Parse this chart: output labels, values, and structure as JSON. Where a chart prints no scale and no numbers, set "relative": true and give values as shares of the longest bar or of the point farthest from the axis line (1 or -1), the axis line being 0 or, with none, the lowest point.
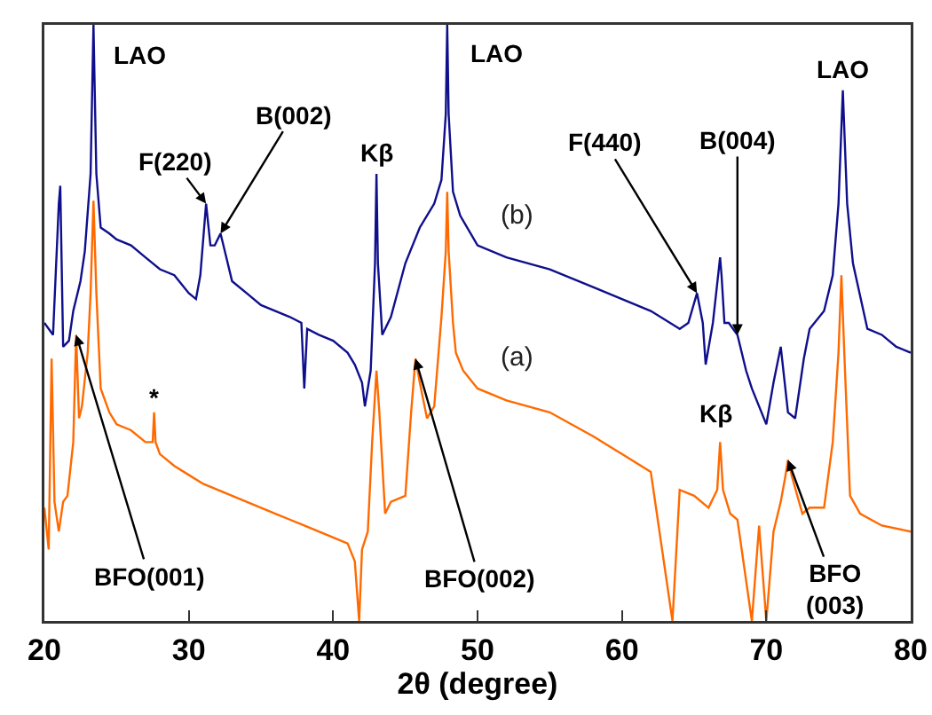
{
  "chart_data": {
    "type": "line",
    "relative": true,
    "xlabel": "2θ (degree)",
    "xlim": [
      20,
      80
    ],
    "xticks": [
      20,
      30,
      40,
      50,
      60,
      70,
      80
    ],
    "grid": false,
    "legend": false,
    "marker": "none",
    "line_style": "solid",
    "series": [
      {
        "name": "(b)",
        "color": "#0f0f8c",
        "x": [
          20.0,
          20.6,
          21.0,
          21.1,
          21.3,
          21.7,
          22.0,
          22.5,
          22.8,
          23.2,
          23.4,
          23.6,
          23.9,
          24.5,
          25,
          26,
          27,
          28,
          29,
          30,
          30.5,
          30.8,
          31.2,
          31.5,
          31.8,
          32.2,
          32.6,
          33,
          34,
          35,
          36,
          37,
          37.8,
          38,
          38.2,
          39,
          40,
          41,
          41.5,
          42.0,
          42.2,
          42.6,
          42.9,
          43.0,
          43.1,
          43.4,
          44,
          45,
          46,
          47,
          47.5,
          47.8,
          47.9,
          48.0,
          48.3,
          48.8,
          50,
          52,
          55,
          58,
          60,
          62,
          64,
          64.6,
          65.2,
          65.6,
          65.8,
          66.3,
          66.8,
          66.9,
          67.1,
          67.4,
          68,
          68.6,
          69,
          69.5,
          70,
          70.5,
          71,
          71.5,
          72,
          72.6,
          73,
          74,
          74.6,
          75.0,
          75.3,
          75.6,
          76,
          77,
          78,
          79,
          80
        ],
        "values": [
          0.5,
          0.48,
          0.7,
          0.73,
          0.46,
          0.47,
          0.52,
          0.57,
          0.62,
          0.75,
          1.0,
          0.75,
          0.66,
          0.65,
          0.64,
          0.63,
          0.61,
          0.59,
          0.58,
          0.55,
          0.54,
          0.58,
          0.7,
          0.63,
          0.63,
          0.65,
          0.61,
          0.57,
          0.55,
          0.53,
          0.52,
          0.51,
          0.5,
          0.39,
          0.49,
          0.48,
          0.47,
          0.45,
          0.43,
          0.4,
          0.36,
          0.42,
          0.6,
          0.75,
          0.6,
          0.48,
          0.51,
          0.6,
          0.66,
          0.7,
          0.74,
          0.85,
          1.0,
          0.85,
          0.72,
          0.68,
          0.63,
          0.61,
          0.59,
          0.56,
          0.54,
          0.52,
          0.49,
          0.5,
          0.55,
          0.5,
          0.43,
          0.5,
          0.61,
          0.58,
          0.5,
          0.5,
          0.48,
          0.42,
          0.39,
          0.36,
          0.33,
          0.4,
          0.46,
          0.35,
          0.34,
          0.44,
          0.49,
          0.52,
          0.58,
          0.7,
          0.89,
          0.7,
          0.6,
          0.49,
          0.48,
          0.46,
          0.45
        ]
      },
      {
        "name": "(a)",
        "color": "#ff6a00",
        "x": [
          20.0,
          20.3,
          20.5,
          20.7,
          21.0,
          21.3,
          21.6,
          22.0,
          22.2,
          22.4,
          22.6,
          23.0,
          23.2,
          23.4,
          23.6,
          23.9,
          24.5,
          25,
          26,
          27,
          27.5,
          27.6,
          27.7,
          28,
          29,
          30,
          31,
          32,
          33,
          34,
          35,
          36,
          37,
          38,
          39,
          40,
          41,
          41.5,
          41.8,
          42.0,
          42.4,
          42.7,
          43.0,
          43.2,
          43.6,
          44,
          45,
          45.4,
          45.7,
          46.0,
          46.5,
          47,
          47.5,
          47.8,
          47.9,
          48.0,
          48.3,
          48.5,
          49,
          50,
          52,
          55,
          58,
          60,
          62,
          63.5,
          64,
          65,
          66,
          66.6,
          66.8,
          67.0,
          67.5,
          68,
          69,
          69.5,
          70,
          70.5,
          71,
          71.3,
          71.5,
          71.8,
          72.5,
          73,
          74,
          74.6,
          75.0,
          75.2,
          75.4,
          75.8,
          76.5,
          78,
          80
        ],
        "values": [
          0.19,
          0.12,
          0.44,
          0.2,
          0.15,
          0.2,
          0.21,
          0.3,
          0.48,
          0.34,
          0.36,
          0.45,
          0.55,
          0.705,
          0.55,
          0.39,
          0.35,
          0.33,
          0.32,
          0.3,
          0.3,
          0.35,
          0.3,
          0.28,
          0.26,
          0.245,
          0.23,
          0.22,
          0.21,
          0.2,
          0.19,
          0.18,
          0.17,
          0.16,
          0.15,
          0.14,
          0.13,
          0.1,
          0.0,
          0.12,
          0.15,
          0.3,
          0.42,
          0.35,
          0.18,
          0.2,
          0.21,
          0.35,
          0.44,
          0.4,
          0.34,
          0.36,
          0.51,
          0.62,
          0.72,
          0.62,
          0.5,
          0.45,
          0.42,
          0.39,
          0.37,
          0.35,
          0.31,
          0.28,
          0.25,
          0.0,
          0.22,
          0.21,
          0.19,
          0.22,
          0.3,
          0.22,
          0.18,
          0.17,
          0.0,
          0.16,
          0.0,
          0.15,
          0.2,
          0.24,
          0.27,
          0.24,
          0.18,
          0.19,
          0.19,
          0.3,
          0.45,
          0.58,
          0.45,
          0.21,
          0.18,
          0.16,
          0.15
        ]
      }
    ],
    "annotations": [
      {
        "text": "LAO",
        "x": 23.4,
        "y": 1.0
      },
      {
        "text": "F(220)",
        "x": 31.2,
        "y": 0.7
      },
      {
        "text": "B(002)",
        "x": 32.2,
        "y": 0.65
      },
      {
        "text": "Kβ",
        "x": 43.0,
        "y": 0.75
      },
      {
        "text": "LAO",
        "x": 47.9,
        "y": 1.0
      },
      {
        "text": "F(440)",
        "x": 65.2,
        "y": 0.55
      },
      {
        "text": "B(004)",
        "x": 68,
        "y": 0.48
      },
      {
        "text": "LAO",
        "x": 75.3,
        "y": 0.89
      },
      {
        "text": "*",
        "x": 27.6,
        "y": 0.35
      },
      {
        "text": "Kβ",
        "x": 66.8,
        "y": 0.3
      },
      {
        "text": "BFO(001)",
        "x": 22.2,
        "y": 0.48
      },
      {
        "text": "BFO(002)",
        "x": 45.7,
        "y": 0.44
      },
      {
        "text": "BFO\n(003)",
        "x": 71.5,
        "y": 0.27
      }
    ]
  }
}
